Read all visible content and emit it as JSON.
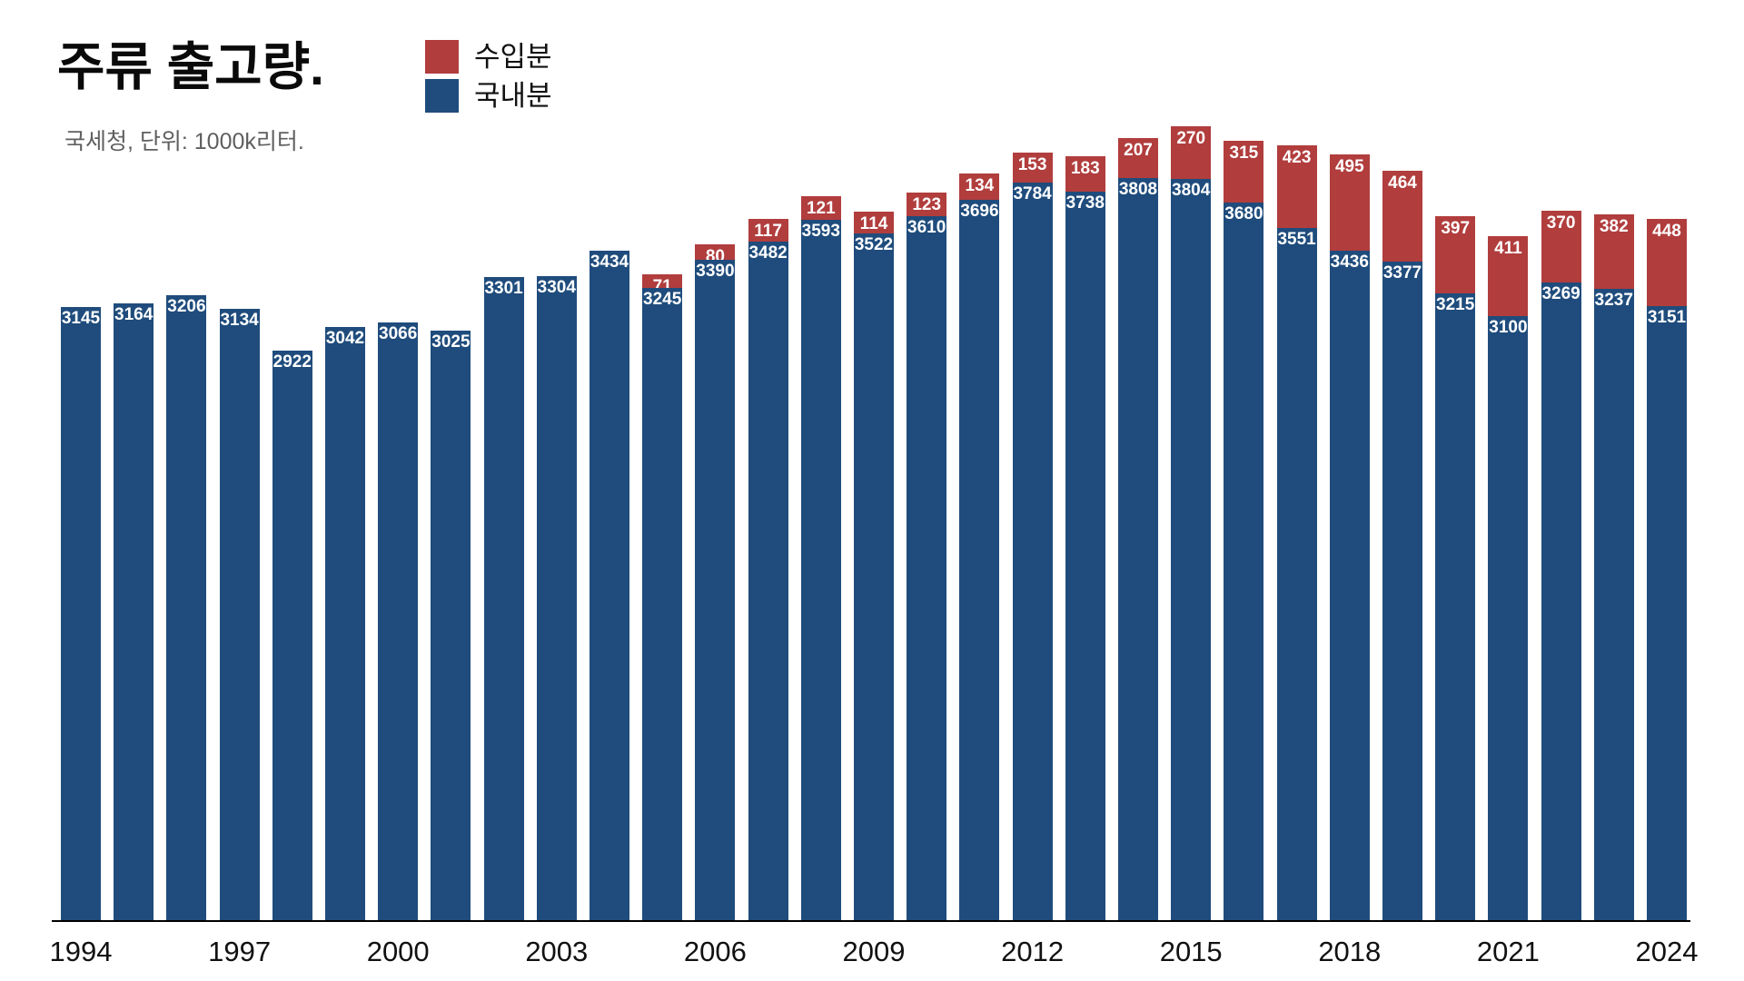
{
  "title": "주류 출고량.",
  "subtitle": "국세청, 단위: 1000k리터.",
  "legend": {
    "items": [
      {
        "label": "수입분",
        "color": "#b13d3d"
      },
      {
        "label": "국내분",
        "color": "#1f4c7c"
      }
    ]
  },
  "chart_data": {
    "type": "bar",
    "stacked": true,
    "title": "주류 출고량.",
    "source": "국세청",
    "unit": "1000k리터",
    "x": [
      1994,
      1995,
      1996,
      1997,
      1998,
      1999,
      2000,
      2001,
      2002,
      2003,
      2004,
      2005,
      2006,
      2007,
      2008,
      2009,
      2010,
      2011,
      2012,
      2013,
      2014,
      2015,
      2016,
      2017,
      2018,
      2019,
      2020,
      2021,
      2022,
      2023,
      2024
    ],
    "series": [
      {
        "name": "국내분",
        "color": "#1f4c7c",
        "values": [
          3145,
          3164,
          3206,
          3134,
          2922,
          3042,
          3066,
          3025,
          3301,
          3304,
          3434,
          3245,
          3390,
          3482,
          3593,
          3522,
          3610,
          3696,
          3784,
          3738,
          3808,
          3804,
          3680,
          3551,
          3436,
          3377,
          3215,
          3100,
          3269,
          3237,
          3151
        ]
      },
      {
        "name": "수입분",
        "color": "#b13d3d",
        "values": [
          0,
          0,
          0,
          0,
          0,
          0,
          0,
          0,
          0,
          0,
          0,
          71,
          80,
          117,
          121,
          114,
          123,
          134,
          153,
          183,
          207,
          270,
          315,
          423,
          495,
          464,
          397,
          411,
          370,
          382,
          448
        ]
      }
    ],
    "x_ticks": [
      "1994",
      "1997",
      "2000",
      "2003",
      "2006",
      "2009",
      "2012",
      "2015",
      "2018",
      "2021",
      "2024"
    ],
    "legend_position": "top",
    "grid": false,
    "data_labels": true
  }
}
